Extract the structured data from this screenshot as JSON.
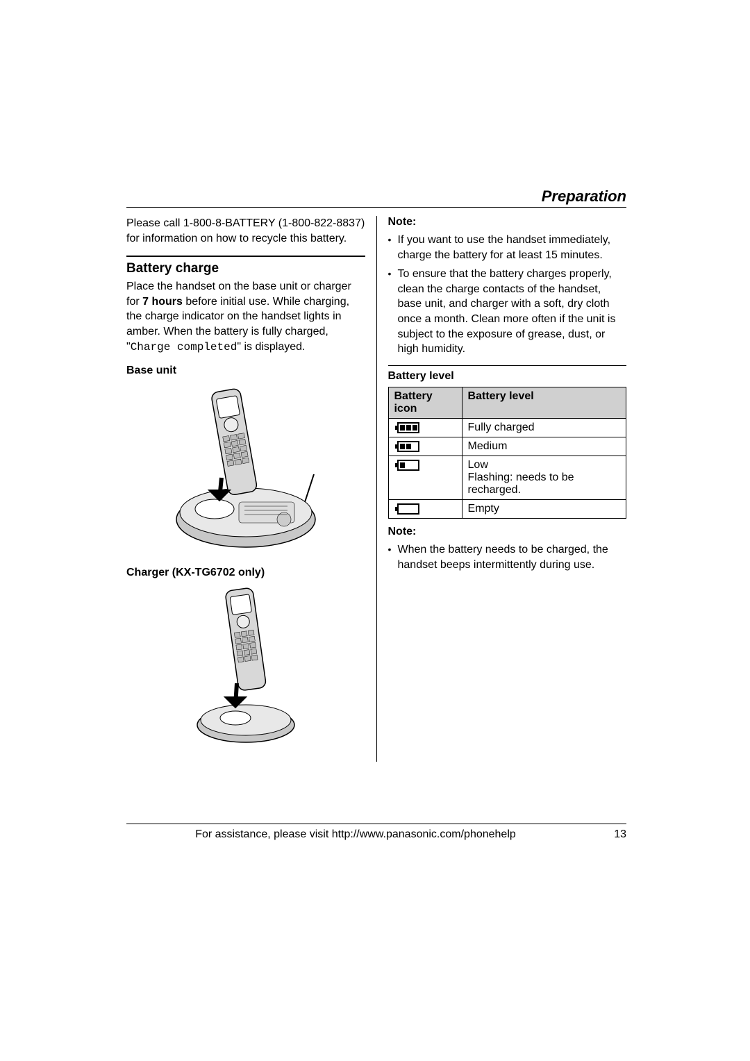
{
  "section_title": "Preparation",
  "left": {
    "recycle_text": "Please call 1-800-8-BATTERY (1-800-822-8837) for information on how to recycle this battery.",
    "battery_charge_heading": "Battery charge",
    "battery_charge_text_pre": "Place the handset on the base unit or charger for ",
    "battery_charge_bold": "7 hours",
    "battery_charge_text_mid": " before initial use. While charging, the charge indicator on the handset lights in amber. When the battery is fully charged, \"",
    "battery_charge_mono": "Charge completed",
    "battery_charge_text_post": "\" is displayed.",
    "base_unit_label": "Base unit",
    "charger_label": "Charger (KX-TG6702 only)"
  },
  "right": {
    "note1_label": "Note:",
    "note1_items": [
      "If you want to use the handset immediately, charge the battery for at least 15 minutes.",
      "To ensure that the battery charges properly, clean the charge contacts of the handset, base unit, and charger with a soft, dry cloth once a month. Clean more often if the unit is subject to the exposure of grease, dust, or high humidity."
    ],
    "battery_level_heading": "Battery level",
    "table": {
      "col1": "Battery icon",
      "col2": "Battery level",
      "rows": [
        {
          "bars": 3,
          "level": "Fully charged"
        },
        {
          "bars": 2,
          "level": "Medium"
        },
        {
          "bars": 1,
          "level": "Low\nFlashing: needs to be recharged."
        },
        {
          "bars": 0,
          "level": "Empty"
        }
      ]
    },
    "note2_label": "Note:",
    "note2_items": [
      "When the battery needs to be charged, the handset beeps intermittently during use."
    ]
  },
  "footer": {
    "text": "For assistance, please visit http://www.panasonic.com/phonehelp",
    "page": "13"
  },
  "colors": {
    "table_header_bg": "#d0d0d0",
    "text": "#000000",
    "bg": "#ffffff"
  }
}
